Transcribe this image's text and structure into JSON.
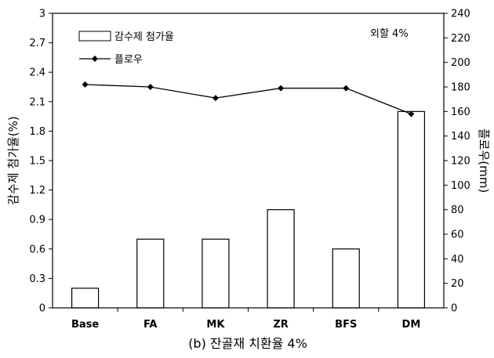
{
  "chart_data": {
    "type": "bar+line",
    "categories": [
      "Base",
      "FA",
      "MK",
      "ZR",
      "BFS",
      "DM"
    ],
    "series": [
      {
        "name": "감수제 첨가율",
        "kind": "bar",
        "axis": "left",
        "values": [
          0.2,
          0.7,
          0.7,
          1.0,
          0.6,
          2.0
        ]
      },
      {
        "name": "플로우",
        "kind": "line",
        "axis": "right",
        "values": [
          182,
          180,
          171,
          179,
          179,
          158
        ]
      }
    ],
    "ylabel_left": "감수제 첨가율(%)",
    "ylabel_right": "플로우(mm)",
    "ylim_left": [
      0,
      3
    ],
    "yticks_left": [
      "0",
      "0.3",
      "0.6",
      "0.9",
      "1.2",
      "1.5",
      "1.8",
      "2.1",
      "2.4",
      "2.7",
      "3"
    ],
    "ylim_right": [
      0,
      240
    ],
    "yticks_right": [
      "0",
      "20",
      "40",
      "60",
      "80",
      "100",
      "120",
      "140",
      "160",
      "180",
      "200",
      "220",
      "240"
    ],
    "annotation": "외할 4%",
    "caption": "(b) 잔골재 치환율 4%",
    "legend_position": "top-left",
    "grid": false
  }
}
